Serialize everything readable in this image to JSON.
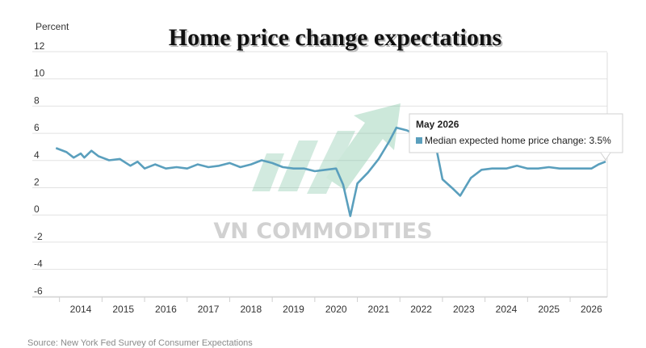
{
  "chart_data": {
    "type": "line",
    "title": "Home price change expectations",
    "ylabel": "Percent",
    "xlabel": "",
    "ylim": [
      -6,
      12
    ],
    "yticks": [
      12,
      10,
      8,
      6,
      4,
      2,
      0,
      -2,
      -4,
      -6
    ],
    "xticks": [
      "2014",
      "2015",
      "2016",
      "2017",
      "2018",
      "2019",
      "2020",
      "2021",
      "2022",
      "2023",
      "2024",
      "2025",
      "2026"
    ],
    "xlim": [
      "2013-06",
      "2026-06"
    ],
    "grid": "horizontal",
    "series": [
      {
        "name": "Median expected home price change",
        "color": "#5a9fbd",
        "points": [
          [
            "2013-06",
            4.5
          ],
          [
            "2013-09",
            4.2
          ],
          [
            "2013-11",
            3.8
          ],
          [
            "2014-01",
            4.1
          ],
          [
            "2014-02",
            3.8
          ],
          [
            "2014-04",
            4.3
          ],
          [
            "2014-06",
            3.9
          ],
          [
            "2014-09",
            3.6
          ],
          [
            "2014-12",
            3.7
          ],
          [
            "2015-03",
            3.2
          ],
          [
            "2015-05",
            3.5
          ],
          [
            "2015-07",
            3.0
          ],
          [
            "2015-10",
            3.3
          ],
          [
            "2016-01",
            3.0
          ],
          [
            "2016-04",
            3.1
          ],
          [
            "2016-07",
            3.0
          ],
          [
            "2016-10",
            3.3
          ],
          [
            "2017-01",
            3.1
          ],
          [
            "2017-04",
            3.2
          ],
          [
            "2017-07",
            3.4
          ],
          [
            "2017-10",
            3.1
          ],
          [
            "2018-01",
            3.3
          ],
          [
            "2018-04",
            3.6
          ],
          [
            "2018-07",
            3.4
          ],
          [
            "2018-10",
            3.1
          ],
          [
            "2019-01",
            3.0
          ],
          [
            "2019-04",
            3.0
          ],
          [
            "2019-07",
            2.8
          ],
          [
            "2019-10",
            2.9
          ],
          [
            "2020-01",
            3.0
          ],
          [
            "2020-03",
            1.8
          ],
          [
            "2020-05",
            -0.5
          ],
          [
            "2020-07",
            1.9
          ],
          [
            "2020-10",
            2.7
          ],
          [
            "2021-01",
            3.7
          ],
          [
            "2021-04",
            5.0
          ],
          [
            "2021-06",
            6.0
          ],
          [
            "2021-09",
            5.8
          ],
          [
            "2021-12",
            5.4
          ],
          [
            "2022-03",
            5.6
          ],
          [
            "2022-05",
            4.8
          ],
          [
            "2022-07",
            2.2
          ],
          [
            "2022-10",
            1.5
          ],
          [
            "2022-12",
            1.0
          ],
          [
            "2023-03",
            2.3
          ],
          [
            "2023-06",
            2.9
          ],
          [
            "2023-09",
            3.0
          ],
          [
            "2024-01",
            3.0
          ],
          [
            "2024-04",
            3.2
          ],
          [
            "2024-07",
            3.0
          ],
          [
            "2024-10",
            3.0
          ],
          [
            "2025-01",
            3.1
          ],
          [
            "2025-04",
            3.0
          ],
          [
            "2025-07",
            3.0
          ],
          [
            "2025-10",
            3.0
          ],
          [
            "2026-01",
            3.0
          ],
          [
            "2026-03",
            3.3
          ],
          [
            "2026-05",
            3.5
          ]
        ]
      }
    ],
    "tooltip": {
      "title": "May 2026",
      "label": "Median expected home price change: 3.5%",
      "x": "2026-05",
      "y": 3.5
    },
    "source": "Source: New York Fed Survey of Consumer Expectations",
    "watermark": "VN COMMODITIES"
  }
}
